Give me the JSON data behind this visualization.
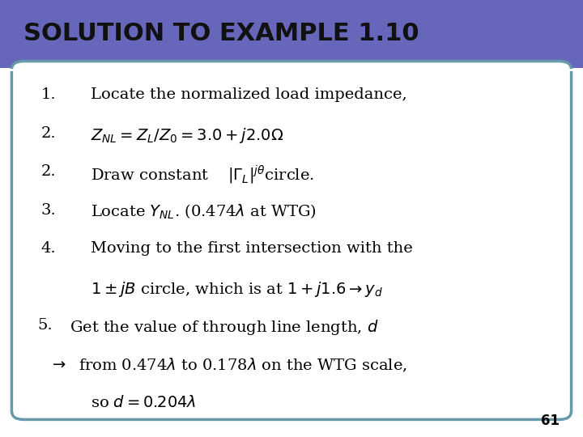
{
  "title": "SOLUTION TO EXAMPLE 1.10",
  "title_bg_color": "#6666BB",
  "title_text_color": "#111111",
  "slide_bg_color": "#ffffff",
  "border_color": "#6699AA",
  "page_number": "61",
  "lines": [
    {
      "type": "numbered",
      "num": "1.",
      "text": "Locate the normalized load impedance,",
      "indent": 0.08
    },
    {
      "type": "numbered",
      "num": "2.",
      "text": "$Z_{NL} = Z_L/Z_0 = 3.0 + j2.0\\Omega$",
      "indent": 0.13
    },
    {
      "type": "numbered",
      "num": "2.",
      "text": "Draw constant    $|\\Gamma_L|^{j\\theta}$circle.",
      "indent": 0.08
    },
    {
      "type": "numbered",
      "num": "3.",
      "text": "Locate $Y_{NL}$. (0.474λ at WTG)",
      "indent": 0.08
    },
    {
      "type": "numbered",
      "num": "4.",
      "text": "Moving to the first intersection with the",
      "indent": 0.08
    },
    {
      "type": "plain",
      "num": "",
      "text": "$1 \\pm jB$ circle, which is at $1 + j1.6 \\rightarrow y_d$",
      "indent": 0.13
    },
    {
      "type": "plain",
      "num": "5.",
      "text": "Get the value of through line length, $d$",
      "indent": 0.055
    },
    {
      "type": "plain",
      "num": "→",
      "text": "from 0.474λ to 0.178λ on the WTG scale,",
      "indent": 0.085
    },
    {
      "type": "plain",
      "num": "",
      "text": "so $d = 0.204\\lambda$",
      "indent": 0.13
    }
  ],
  "font_size": 14,
  "title_font_size": 22
}
